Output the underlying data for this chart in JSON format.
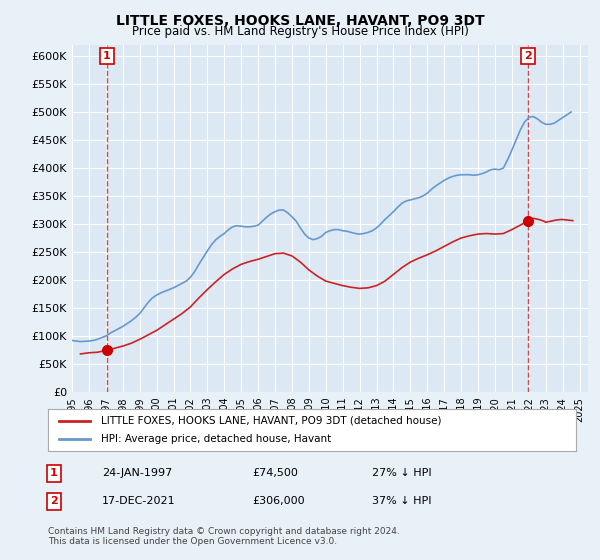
{
  "title": "LITTLE FOXES, HOOKS LANE, HAVANT, PO9 3DT",
  "subtitle": "Price paid vs. HM Land Registry's House Price Index (HPI)",
  "background_color": "#dce9f5",
  "plot_bg_color": "#dce9f5",
  "ylabel_color": "#000000",
  "grid_color": "#ffffff",
  "xlim": [
    1995.0,
    2025.5
  ],
  "ylim": [
    0,
    620000
  ],
  "yticks": [
    0,
    50000,
    100000,
    150000,
    200000,
    250000,
    300000,
    350000,
    400000,
    450000,
    500000,
    550000,
    600000
  ],
  "ytick_labels": [
    "£0",
    "£50K",
    "£100K",
    "£150K",
    "£200K",
    "£250K",
    "£300K",
    "£350K",
    "£400K",
    "£450K",
    "£500K",
    "£550K",
    "£600K"
  ],
  "xtick_years": [
    1995,
    1996,
    1997,
    1998,
    1999,
    2000,
    2001,
    2002,
    2003,
    2004,
    2005,
    2006,
    2007,
    2008,
    2009,
    2010,
    2011,
    2012,
    2013,
    2014,
    2015,
    2016,
    2017,
    2018,
    2019,
    2020,
    2021,
    2022,
    2023,
    2024,
    2025
  ],
  "hpi_color": "#6699cc",
  "price_color": "#cc2222",
  "marker_color": "#cc0000",
  "dashed_color": "#cc2222",
  "sale1_x": 1997.07,
  "sale1_y": 74500,
  "sale1_label": "1",
  "sale2_x": 2021.96,
  "sale2_y": 306000,
  "sale2_label": "2",
  "legend_line1": "LITTLE FOXES, HOOKS LANE, HAVANT, PO9 3DT (detached house)",
  "legend_line2": "HPI: Average price, detached house, Havant",
  "table_row1": [
    "1",
    "24-JAN-1997",
    "£74,500",
    "27% ↓ HPI"
  ],
  "table_row2": [
    "2",
    "17-DEC-2021",
    "£306,000",
    "37% ↓ HPI"
  ],
  "footnote": "Contains HM Land Registry data © Crown copyright and database right 2024.\nThis data is licensed under the Open Government Licence v3.0.",
  "hpi_data_x": [
    1995.0,
    1995.25,
    1995.5,
    1995.75,
    1996.0,
    1996.25,
    1996.5,
    1996.75,
    1997.0,
    1997.25,
    1997.5,
    1997.75,
    1998.0,
    1998.25,
    1998.5,
    1998.75,
    1999.0,
    1999.25,
    1999.5,
    1999.75,
    2000.0,
    2000.25,
    2000.5,
    2000.75,
    2001.0,
    2001.25,
    2001.5,
    2001.75,
    2002.0,
    2002.25,
    2002.5,
    2002.75,
    2003.0,
    2003.25,
    2003.5,
    2003.75,
    2004.0,
    2004.25,
    2004.5,
    2004.75,
    2005.0,
    2005.25,
    2005.5,
    2005.75,
    2006.0,
    2006.25,
    2006.5,
    2006.75,
    2007.0,
    2007.25,
    2007.5,
    2007.75,
    2008.0,
    2008.25,
    2008.5,
    2008.75,
    2009.0,
    2009.25,
    2009.5,
    2009.75,
    2010.0,
    2010.25,
    2010.5,
    2010.75,
    2011.0,
    2011.25,
    2011.5,
    2011.75,
    2012.0,
    2012.25,
    2012.5,
    2012.75,
    2013.0,
    2013.25,
    2013.5,
    2013.75,
    2014.0,
    2014.25,
    2014.5,
    2014.75,
    2015.0,
    2015.25,
    2015.5,
    2015.75,
    2016.0,
    2016.25,
    2016.5,
    2016.75,
    2017.0,
    2017.25,
    2017.5,
    2017.75,
    2018.0,
    2018.25,
    2018.5,
    2018.75,
    2019.0,
    2019.25,
    2019.5,
    2019.75,
    2020.0,
    2020.25,
    2020.5,
    2020.75,
    2021.0,
    2021.25,
    2021.5,
    2021.75,
    2022.0,
    2022.25,
    2022.5,
    2022.75,
    2023.0,
    2023.25,
    2023.5,
    2023.75,
    2024.0,
    2024.25,
    2024.5
  ],
  "hpi_data_y": [
    92000,
    91000,
    90000,
    90500,
    91000,
    92000,
    94000,
    97000,
    100000,
    105000,
    109000,
    113000,
    117000,
    122000,
    127000,
    133000,
    140000,
    150000,
    160000,
    168000,
    173000,
    177000,
    180000,
    183000,
    186000,
    190000,
    194000,
    198000,
    205000,
    215000,
    228000,
    240000,
    252000,
    263000,
    272000,
    278000,
    283000,
    290000,
    295000,
    297000,
    296000,
    295000,
    295000,
    296000,
    298000,
    305000,
    312000,
    318000,
    322000,
    325000,
    325000,
    320000,
    313000,
    305000,
    293000,
    282000,
    275000,
    272000,
    274000,
    278000,
    285000,
    288000,
    290000,
    290000,
    288000,
    287000,
    285000,
    283000,
    282000,
    283000,
    285000,
    288000,
    293000,
    300000,
    308000,
    315000,
    322000,
    330000,
    337000,
    341000,
    343000,
    345000,
    347000,
    350000,
    355000,
    362000,
    368000,
    373000,
    378000,
    382000,
    385000,
    387000,
    388000,
    388000,
    388000,
    387000,
    388000,
    390000,
    393000,
    397000,
    398000,
    397000,
    400000,
    415000,
    432000,
    450000,
    468000,
    482000,
    490000,
    492000,
    488000,
    482000,
    478000,
    478000,
    480000,
    485000,
    490000,
    495000,
    500000
  ],
  "price_data_x": [
    1995.5,
    1996.0,
    1996.5,
    1997.07,
    1997.5,
    1998.0,
    1998.5,
    1999.0,
    1999.5,
    2000.0,
    2000.5,
    2001.0,
    2001.5,
    2002.0,
    2002.5,
    2003.0,
    2003.5,
    2004.0,
    2004.5,
    2005.0,
    2005.5,
    2006.0,
    2006.5,
    2007.0,
    2007.5,
    2008.0,
    2008.5,
    2009.0,
    2009.5,
    2010.0,
    2010.5,
    2011.0,
    2011.5,
    2012.0,
    2012.5,
    2013.0,
    2013.5,
    2014.0,
    2014.5,
    2015.0,
    2015.5,
    2016.0,
    2016.5,
    2017.0,
    2017.5,
    2018.0,
    2018.5,
    2019.0,
    2019.5,
    2020.0,
    2020.5,
    2021.0,
    2021.5,
    2021.96,
    2022.0,
    2022.3,
    2022.6,
    2022.9,
    2023.0,
    2023.3,
    2023.6,
    2023.9,
    2024.0,
    2024.3,
    2024.6
  ],
  "price_data_y": [
    68000,
    70000,
    71000,
    74500,
    78000,
    82000,
    87000,
    94000,
    102000,
    110000,
    120000,
    130000,
    140000,
    152000,
    168000,
    183000,
    197000,
    210000,
    220000,
    228000,
    233000,
    237000,
    242000,
    247000,
    248000,
    243000,
    232000,
    218000,
    207000,
    198000,
    194000,
    190000,
    187000,
    185000,
    186000,
    190000,
    198000,
    210000,
    222000,
    232000,
    239000,
    245000,
    252000,
    260000,
    268000,
    275000,
    279000,
    282000,
    283000,
    282000,
    283000,
    290000,
    298000,
    306000,
    308000,
    310000,
    308000,
    305000,
    303000,
    305000,
    307000,
    308000,
    308000,
    307000,
    306000
  ]
}
